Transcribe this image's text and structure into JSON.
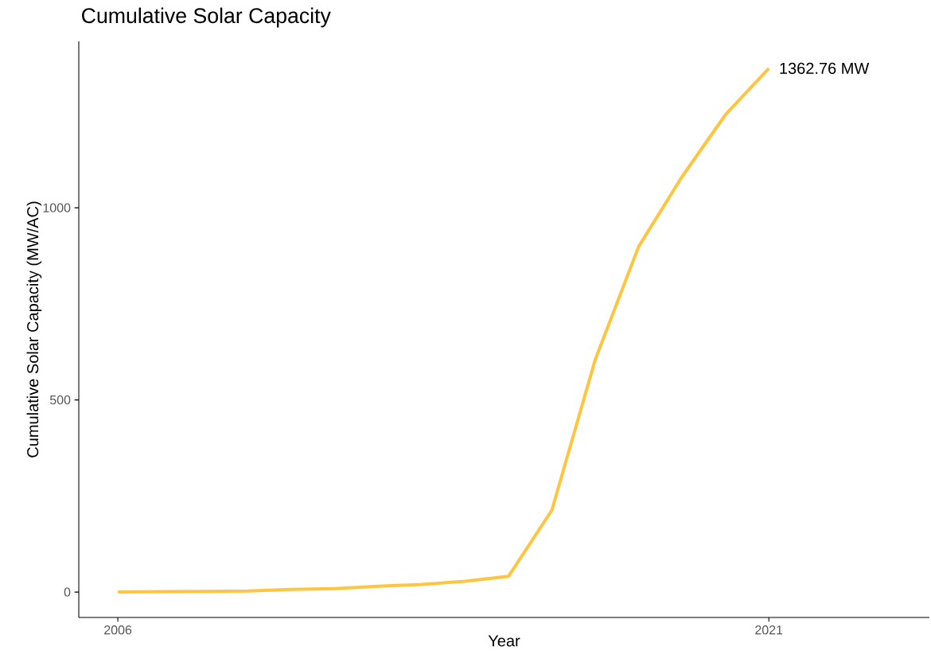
{
  "chart_data": {
    "type": "line",
    "title": "Cumulative Solar Capacity",
    "xlabel": "Year",
    "ylabel": "Cumulative Solar Capacity (MW/AC)",
    "x": [
      2006,
      2007,
      2008,
      2009,
      2010,
      2011,
      2012,
      2013,
      2014,
      2015,
      2016,
      2017,
      2018,
      2019,
      2020,
      2021
    ],
    "values": [
      0,
      1,
      2,
      3,
      7,
      9,
      15,
      20,
      28,
      41,
      213,
      605,
      899,
      1081,
      1242,
      1362.76
    ],
    "color": "#ffc53f",
    "xlim": [
      2005.1,
      2024.7
    ],
    "ylim": [
      -66,
      1433
    ],
    "xticks": [
      2006,
      2021
    ],
    "yticks": [
      0,
      500,
      1000
    ],
    "annotations": [
      {
        "text": "1362.76 MW",
        "x": 2021,
        "y": 1362.76
      }
    ]
  }
}
